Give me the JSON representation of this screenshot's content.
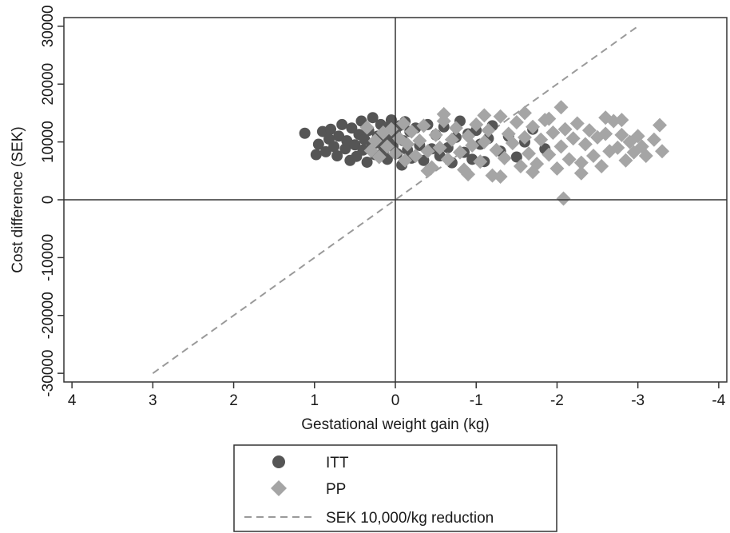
{
  "chart_data": {
    "type": "scatter",
    "title": "",
    "xlabel": "Gestational weight gain (kg)",
    "ylabel": "Cost difference (SEK)",
    "xlim": [
      4.1,
      -4.1
    ],
    "ylim": [
      -31500,
      31500
    ],
    "x_reversed": true,
    "x_ticks": [
      4,
      3,
      2,
      1,
      0,
      -1,
      -2,
      -3,
      -4
    ],
    "x_tick_labels": [
      "4",
      "3",
      "2",
      "1",
      "0",
      "-1",
      "-2",
      "-3",
      "-4"
    ],
    "y_ticks": [
      -30000,
      -20000,
      -10000,
      0,
      10000,
      20000,
      30000
    ],
    "y_tick_labels": [
      "-30000",
      "-20000",
      "-10000",
      "0",
      "10000",
      "20000",
      "30000"
    ],
    "grid": false,
    "reference_lines": {
      "x": 0,
      "y": 0
    },
    "legend_position": "bottom-center",
    "series": [
      {
        "name": "ITT",
        "marker": "circle",
        "color": "#555555",
        "points": [
          [
            1.12,
            11500
          ],
          [
            0.98,
            7800
          ],
          [
            0.95,
            9600
          ],
          [
            0.9,
            11800
          ],
          [
            0.86,
            8300
          ],
          [
            0.82,
            10500
          ],
          [
            0.8,
            12200
          ],
          [
            0.76,
            9200
          ],
          [
            0.72,
            7600
          ],
          [
            0.7,
            11000
          ],
          [
            0.66,
            13000
          ],
          [
            0.62,
            8800
          ],
          [
            0.6,
            10200
          ],
          [
            0.56,
            6800
          ],
          [
            0.54,
            12400
          ],
          [
            0.5,
            9500
          ],
          [
            0.48,
            7500
          ],
          [
            0.45,
            11300
          ],
          [
            0.42,
            13600
          ],
          [
            0.4,
            8600
          ],
          [
            0.38,
            10400
          ],
          [
            0.35,
            6500
          ],
          [
            0.33,
            12000
          ],
          [
            0.3,
            9000
          ],
          [
            0.28,
            14200
          ],
          [
            0.25,
            7800
          ],
          [
            0.22,
            11000
          ],
          [
            0.2,
            9800
          ],
          [
            0.18,
            13000
          ],
          [
            0.15,
            8200
          ],
          [
            0.12,
            12500
          ],
          [
            0.1,
            7000
          ],
          [
            0.08,
            10500
          ],
          [
            0.05,
            13800
          ],
          [
            0.03,
            9200
          ],
          [
            0.0,
            11600
          ],
          [
            -0.02,
            8000
          ],
          [
            -0.05,
            12800
          ],
          [
            -0.08,
            6000
          ],
          [
            -0.1,
            10200
          ],
          [
            -0.12,
            13500
          ],
          [
            -0.15,
            8600
          ],
          [
            -0.18,
            11800
          ],
          [
            -0.2,
            7200
          ],
          [
            -0.25,
            12400
          ],
          [
            -0.3,
            9400
          ],
          [
            -0.35,
            6800
          ],
          [
            -0.4,
            13000
          ],
          [
            -0.45,
            8800
          ],
          [
            -0.5,
            11200
          ],
          [
            -0.55,
            7600
          ],
          [
            -0.6,
            12600
          ],
          [
            -0.65,
            9000
          ],
          [
            -0.7,
            6400
          ],
          [
            -0.75,
            10800
          ],
          [
            -0.8,
            13600
          ],
          [
            -0.85,
            8200
          ],
          [
            -0.9,
            11400
          ],
          [
            -0.95,
            7000
          ],
          [
            -1.0,
            12000
          ],
          [
            -1.05,
            9600
          ],
          [
            -1.1,
            6600
          ],
          [
            -1.15,
            10600
          ],
          [
            -1.2,
            12800
          ],
          [
            -1.3,
            8400
          ],
          [
            -1.4,
            11000
          ],
          [
            -1.5,
            7400
          ],
          [
            -1.6,
            10000
          ],
          [
            -1.7,
            12200
          ],
          [
            -1.85,
            8800
          ]
        ]
      },
      {
        "name": "PP",
        "marker": "diamond",
        "color": "#a5a5a5",
        "points": [
          [
            0.35,
            12500
          ],
          [
            0.3,
            8500
          ],
          [
            0.25,
            10200
          ],
          [
            0.2,
            7400
          ],
          [
            0.15,
            11600
          ],
          [
            0.1,
            9200
          ],
          [
            0.05,
            12200
          ],
          [
            0.0,
            8000
          ],
          [
            -0.05,
            10600
          ],
          [
            -0.1,
            13200
          ],
          [
            -0.12,
            6800
          ],
          [
            -0.15,
            9600
          ],
          [
            -0.2,
            11800
          ],
          [
            -0.25,
            7600
          ],
          [
            -0.3,
            10200
          ],
          [
            -0.35,
            12800
          ],
          [
            -0.4,
            8400
          ],
          [
            -0.45,
            5600
          ],
          [
            -0.5,
            11200
          ],
          [
            -0.55,
            9000
          ],
          [
            -0.6,
            13600
          ],
          [
            -0.65,
            7000
          ],
          [
            -0.7,
            10400
          ],
          [
            -0.75,
            12400
          ],
          [
            -0.8,
            8200
          ],
          [
            -0.85,
            5200
          ],
          [
            -0.9,
            11000
          ],
          [
            -0.95,
            9400
          ],
          [
            -1.0,
            13000
          ],
          [
            -1.05,
            6600
          ],
          [
            -1.1,
            10000
          ],
          [
            -1.15,
            12000
          ],
          [
            -1.2,
            4200
          ],
          [
            -1.25,
            8600
          ],
          [
            -1.3,
            14400
          ],
          [
            -1.35,
            7200
          ],
          [
            -1.4,
            11400
          ],
          [
            -1.45,
            9800
          ],
          [
            -1.5,
            13400
          ],
          [
            -1.55,
            5800
          ],
          [
            -1.6,
            10800
          ],
          [
            -1.65,
            8000
          ],
          [
            -1.7,
            12600
          ],
          [
            -1.75,
            6200
          ],
          [
            -1.8,
            10400
          ],
          [
            -1.85,
            13800
          ],
          [
            -1.9,
            7800
          ],
          [
            -1.95,
            11600
          ],
          [
            -2.0,
            5400
          ],
          [
            -2.05,
            16000
          ],
          [
            -2.05,
            9200
          ],
          [
            -2.08,
            200
          ],
          [
            -2.1,
            12200
          ],
          [
            -2.15,
            7000
          ],
          [
            -2.2,
            10600
          ],
          [
            -2.25,
            13200
          ],
          [
            -2.3,
            6400
          ],
          [
            -2.35,
            9600
          ],
          [
            -2.4,
            12000
          ],
          [
            -2.45,
            7600
          ],
          [
            -2.5,
            10800
          ],
          [
            -2.55,
            5800
          ],
          [
            -2.6,
            11400
          ],
          [
            -2.65,
            8400
          ],
          [
            -2.7,
            13600
          ],
          [
            -2.75,
            9000
          ],
          [
            -2.8,
            11200
          ],
          [
            -2.85,
            6800
          ],
          [
            -2.9,
            10000
          ],
          [
            -2.95,
            8200
          ],
          [
            -3.0,
            11000
          ],
          [
            -3.05,
            9200
          ],
          [
            -3.1,
            7600
          ],
          [
            -3.2,
            10400
          ],
          [
            -3.27,
            12900
          ],
          [
            -3.3,
            8400
          ],
          [
            -0.6,
            14800
          ],
          [
            -1.1,
            14600
          ],
          [
            -1.6,
            15000
          ],
          [
            -1.3,
            4000
          ],
          [
            -0.9,
            4400
          ],
          [
            -2.3,
            4600
          ],
          [
            -1.9,
            14000
          ],
          [
            -2.6,
            14200
          ],
          [
            -0.4,
            5000
          ],
          [
            -1.7,
            4800
          ],
          [
            -2.8,
            13800
          ]
        ]
      },
      {
        "name": "SEK 10,000/kg reduction",
        "marker": "dashed-line",
        "color": "#9a9a9a",
        "points": [
          [
            3,
            -30000
          ],
          [
            -3,
            30000
          ]
        ]
      }
    ]
  }
}
